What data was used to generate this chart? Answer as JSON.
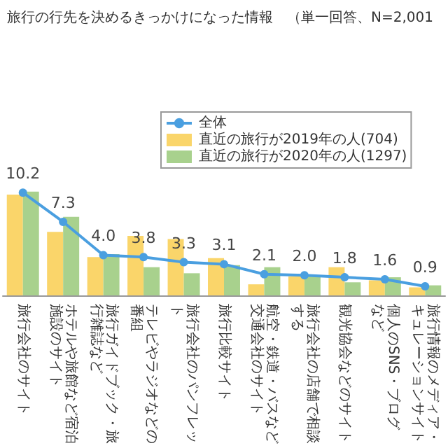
{
  "chart_data": {
    "type": "bar",
    "title": "旅行の行先を決めるきっかけになった情報　（単一回答、N=2,001",
    "categories": [
      "旅行会社のサイト",
      "ホテルや旅館など宿泊施設のサイト",
      "旅行ガイドブック・旅行雑誌など",
      "テレビやラジオなどの番組",
      "旅行会社のパンフレット",
      "旅行比較サイト",
      "航空・鉄道・バスなど交通会社のサイト",
      "旅行会社の店舗で相談する",
      "観光協会などのサイト",
      "個人のSNS・ブログなど",
      "旅行情報のメディア・キュレーションサイト"
    ],
    "series": [
      {
        "name": "全体",
        "type": "line",
        "color": "#4a9fe0",
        "values": [
          10.2,
          7.3,
          4.0,
          3.8,
          3.3,
          3.1,
          2.1,
          2.0,
          1.8,
          1.6,
          0.9
        ],
        "value_labels": [
          "10.2",
          "7.3",
          "4.0",
          "3.8",
          "3.3",
          "3.1",
          "2.1",
          "2.0",
          "1.8",
          "1.6",
          "0.9"
        ]
      },
      {
        "name": "直近の旅行が2019年の人(704)",
        "color": "#fad56a",
        "values": [
          10.0,
          6.3,
          3.8,
          5.9,
          5.6,
          3.7,
          1.1,
          1.9,
          2.8,
          1.5,
          0.8
        ]
      },
      {
        "name": "直近の旅行が2020年の人(1297)",
        "color": "#a8d18d",
        "values": [
          10.3,
          7.8,
          4.1,
          2.8,
          2.2,
          3.0,
          2.8,
          1.9,
          1.3,
          1.8,
          1.0
        ]
      }
    ],
    "tick_labels": "x",
    "marker": "circle",
    "legend": "top"
  }
}
